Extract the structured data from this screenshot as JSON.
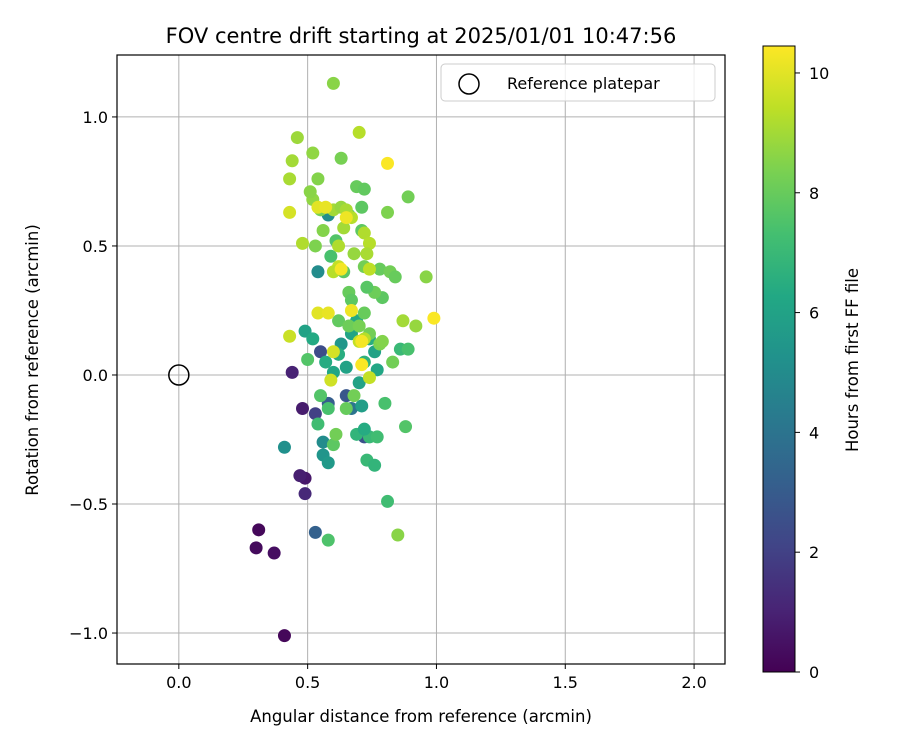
{
  "chart_data": {
    "type": "scatter",
    "title": "FOV centre drift starting at 2025/01/01 10:47:56",
    "xlabel": "Angular distance from reference (arcmin)",
    "ylabel": "Rotation from reference (arcmin)",
    "xlim": [
      -0.24,
      2.12
    ],
    "ylim": [
      -1.12,
      1.24
    ],
    "xticks": [
      0.0,
      0.5,
      1.0,
      1.5,
      2.0
    ],
    "xtick_labels": [
      "0.0",
      "0.5",
      "1.0",
      "1.5",
      "2.0"
    ],
    "yticks": [
      -1.0,
      -0.5,
      0.0,
      0.5,
      1.0
    ],
    "ytick_labels": [
      "−1.0",
      "−0.5",
      "0.0",
      "0.5",
      "1.0"
    ],
    "grid": true,
    "legend": {
      "placement": "upper right",
      "entries": [
        "Reference platepar"
      ]
    },
    "colorbar": {
      "label": "Hours from first FF file",
      "range": [
        0,
        10.45
      ],
      "ticks": [
        0,
        2,
        4,
        6,
        8,
        10
      ],
      "tick_labels": [
        "0",
        "2",
        "4",
        "6",
        "8",
        "10"
      ],
      "colormap": "viridis"
    },
    "reference_point": {
      "x": 0.0,
      "y": 0.0
    },
    "points": [
      [
        0.41,
        -1.01,
        0.2
      ],
      [
        0.31,
        -0.6,
        0.2
      ],
      [
        0.3,
        -0.67,
        0.3
      ],
      [
        0.37,
        -0.69,
        0.4
      ],
      [
        0.49,
        -0.4,
        0.7
      ],
      [
        0.47,
        -0.39,
        0.9
      ],
      [
        0.49,
        -0.46,
        1.2
      ],
      [
        0.44,
        0.01,
        1.0
      ],
      [
        0.48,
        -0.13,
        0.8
      ],
      [
        0.53,
        -0.61,
        3.2
      ],
      [
        0.53,
        -0.15,
        2.0
      ],
      [
        0.55,
        0.09,
        2.4
      ],
      [
        0.58,
        -0.11,
        3.1
      ],
      [
        0.65,
        -0.08,
        2.8
      ],
      [
        0.72,
        -0.24,
        2.6
      ],
      [
        0.67,
        -0.13,
        4.0
      ],
      [
        0.41,
        -0.28,
        5.2
      ],
      [
        0.56,
        -0.26,
        5.0
      ],
      [
        0.56,
        -0.31,
        5.4
      ],
      [
        0.58,
        -0.34,
        5.6
      ],
      [
        0.54,
        0.4,
        5.0
      ],
      [
        0.58,
        0.62,
        5.1
      ],
      [
        0.63,
        0.12,
        5.5
      ],
      [
        0.65,
        0.03,
        6.0
      ],
      [
        0.6,
        0.01,
        6.2
      ],
      [
        0.57,
        0.05,
        6.4
      ],
      [
        0.62,
        0.08,
        6.5
      ],
      [
        0.49,
        0.17,
        6.0
      ],
      [
        0.52,
        0.14,
        6.3
      ],
      [
        0.67,
        0.16,
        6.1
      ],
      [
        0.69,
        0.21,
        6.3
      ],
      [
        0.76,
        0.09,
        6.0
      ],
      [
        0.77,
        0.02,
        6.2
      ],
      [
        0.74,
        0.14,
        6.5
      ],
      [
        0.72,
        0.05,
        6.7
      ],
      [
        0.7,
        -0.03,
        6.0
      ],
      [
        0.71,
        -0.12,
        5.8
      ],
      [
        0.69,
        -0.23,
        6.8
      ],
      [
        0.74,
        -0.24,
        7.0
      ],
      [
        0.72,
        -0.21,
        6.4
      ],
      [
        0.77,
        -0.24,
        7.2
      ],
      [
        0.73,
        -0.33,
        7.0
      ],
      [
        0.76,
        -0.35,
        6.8
      ],
      [
        0.8,
        -0.11,
        7.4
      ],
      [
        0.81,
        -0.49,
        7.2
      ],
      [
        0.58,
        -0.64,
        7.5
      ],
      [
        0.86,
        0.1,
        7.0
      ],
      [
        0.89,
        0.1,
        7.4
      ],
      [
        0.88,
        -0.2,
        7.6
      ],
      [
        0.6,
        -0.27,
        7.8
      ],
      [
        0.58,
        -0.13,
        7.4
      ],
      [
        0.55,
        -0.08,
        7.6
      ],
      [
        0.54,
        -0.19,
        7.2
      ],
      [
        0.5,
        0.06,
        7.6
      ],
      [
        0.59,
        0.46,
        7.4
      ],
      [
        0.64,
        0.4,
        7.8
      ],
      [
        0.61,
        0.52,
        7.6
      ],
      [
        0.66,
        0.62,
        7.5
      ],
      [
        0.71,
        0.65,
        7.8
      ],
      [
        0.69,
        0.73,
        8.0
      ],
      [
        0.72,
        0.72,
        7.9
      ],
      [
        0.71,
        0.56,
        7.8
      ],
      [
        0.78,
        0.41,
        8.0
      ],
      [
        0.82,
        0.4,
        8.2
      ],
      [
        0.84,
        0.38,
        8.0
      ],
      [
        0.79,
        0.3,
        7.8
      ],
      [
        0.76,
        0.32,
        8.1
      ],
      [
        0.73,
        0.34,
        7.7
      ],
      [
        0.72,
        0.42,
        8.2
      ],
      [
        0.66,
        0.32,
        8.0
      ],
      [
        0.67,
        0.29,
        7.8
      ],
      [
        0.62,
        0.21,
        7.9
      ],
      [
        0.66,
        0.19,
        8.1
      ],
      [
        0.7,
        0.19,
        8.3
      ],
      [
        0.72,
        0.24,
        8.0
      ],
      [
        0.74,
        0.16,
        8.2
      ],
      [
        0.78,
        0.12,
        8.4
      ],
      [
        0.79,
        0.13,
        8.5
      ],
      [
        0.83,
        0.05,
        8.2
      ],
      [
        0.61,
        -0.23,
        8.2
      ],
      [
        0.65,
        -0.13,
        8.0
      ],
      [
        0.68,
        -0.08,
        8.2
      ],
      [
        0.63,
        0.84,
        8.3
      ],
      [
        0.89,
        0.69,
        8.2
      ],
      [
        0.81,
        0.63,
        8.4
      ],
      [
        0.85,
        -0.62,
        8.6
      ],
      [
        0.96,
        0.38,
        8.6
      ],
      [
        0.92,
        0.19,
        8.8
      ],
      [
        0.53,
        0.5,
        8.4
      ],
      [
        0.55,
        0.64,
        8.3
      ],
      [
        0.56,
        0.56,
        8.5
      ],
      [
        0.52,
        0.68,
        8.7
      ],
      [
        0.51,
        0.71,
        8.6
      ],
      [
        0.54,
        0.76,
        8.5
      ],
      [
        0.6,
        1.13,
        8.6
      ],
      [
        0.46,
        0.92,
        8.9
      ],
      [
        0.52,
        0.86,
        8.7
      ],
      [
        0.44,
        0.83,
        9.0
      ],
      [
        0.43,
        0.76,
        9.1
      ],
      [
        0.48,
        0.51,
        9.2
      ],
      [
        0.6,
        0.64,
        9.0
      ],
      [
        0.63,
        0.65,
        8.8
      ],
      [
        0.65,
        0.64,
        9.1
      ],
      [
        0.67,
        0.61,
        9.3
      ],
      [
        0.64,
        0.57,
        9.0
      ],
      [
        0.62,
        0.5,
        9.2
      ],
      [
        0.68,
        0.47,
        8.8
      ],
      [
        0.72,
        0.55,
        9.2
      ],
      [
        0.74,
        0.51,
        9.3
      ],
      [
        0.73,
        0.47,
        9.1
      ],
      [
        0.7,
        0.94,
        9.3
      ],
      [
        0.74,
        0.41,
        9.4
      ],
      [
        0.62,
        0.42,
        9.5
      ],
      [
        0.6,
        0.4,
        9.3
      ],
      [
        0.7,
        0.13,
        9.5
      ],
      [
        0.72,
        0.14,
        9.3
      ],
      [
        0.74,
        -0.01,
        9.5
      ],
      [
        0.59,
        -0.02,
        9.7
      ],
      [
        0.6,
        0.09,
        9.8
      ],
      [
        0.43,
        0.63,
        9.8
      ],
      [
        0.43,
        0.15,
        9.6
      ],
      [
        0.54,
        0.65,
        10.0
      ],
      [
        0.57,
        0.65,
        10.1
      ],
      [
        0.65,
        0.61,
        10.2
      ],
      [
        0.63,
        0.41,
        10.3
      ],
      [
        0.54,
        0.24,
        10.0
      ],
      [
        0.58,
        0.24,
        10.1
      ],
      [
        0.67,
        0.25,
        10.2
      ],
      [
        0.71,
        0.13,
        10.3
      ],
      [
        0.71,
        0.04,
        10.4
      ],
      [
        0.81,
        0.82,
        10.4
      ],
      [
        0.99,
        0.22,
        10.4
      ],
      [
        0.87,
        0.21,
        9.0
      ]
    ]
  }
}
